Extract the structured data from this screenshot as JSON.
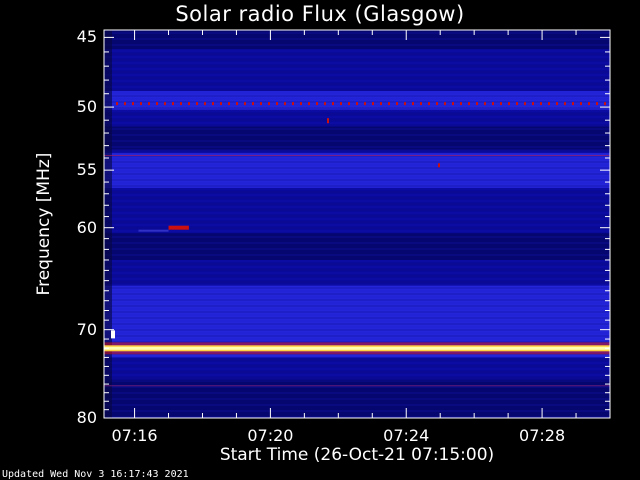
{
  "chart_data": {
    "type": "heatmap",
    "title": "Solar radio Flux (Glasgow)",
    "xlabel": "Start Time (26-Oct-21 07:15:00)",
    "ylabel": "Frequency [MHz]",
    "x_ticks": [
      "07:16",
      "07:20",
      "07:24",
      "07:28"
    ],
    "x_tick_minutes": [
      1,
      5,
      9,
      13
    ],
    "x_range_minutes": [
      0.1,
      15.0
    ],
    "y_ticks": [
      45,
      50,
      55,
      60,
      70,
      80
    ],
    "y_range": [
      44.5,
      80
    ],
    "colors": {
      "background": "#0a0a9a",
      "dark": "#050560",
      "bright": "#2a2ae8",
      "red": "#cc1010",
      "hot": "#ffffb0",
      "frame": "#ffffff"
    },
    "bright_bands": [
      {
        "from": 48.8,
        "to": 50.2,
        "level": "bright"
      },
      {
        "from": 53.6,
        "to": 56.5,
        "level": "bright"
      },
      {
        "from": 65.5,
        "to": 73.0,
        "level": "bright"
      }
    ],
    "dark_bands": [
      {
        "from": 44.5,
        "to": 45.8
      },
      {
        "from": 51.5,
        "to": 53.3
      },
      {
        "from": 60.5,
        "to": 63.0
      },
      {
        "from": 75.5,
        "to": 80.0
      }
    ],
    "hot_line_mhz": 72.0,
    "dotted_line_mhz": 49.7,
    "burst": {
      "start_min": 2.0,
      "end_min": 2.6,
      "freq_mhz": 60.0
    }
  },
  "footer": {
    "updated": "Updated Wed Nov  3 16:17:43 2021"
  }
}
